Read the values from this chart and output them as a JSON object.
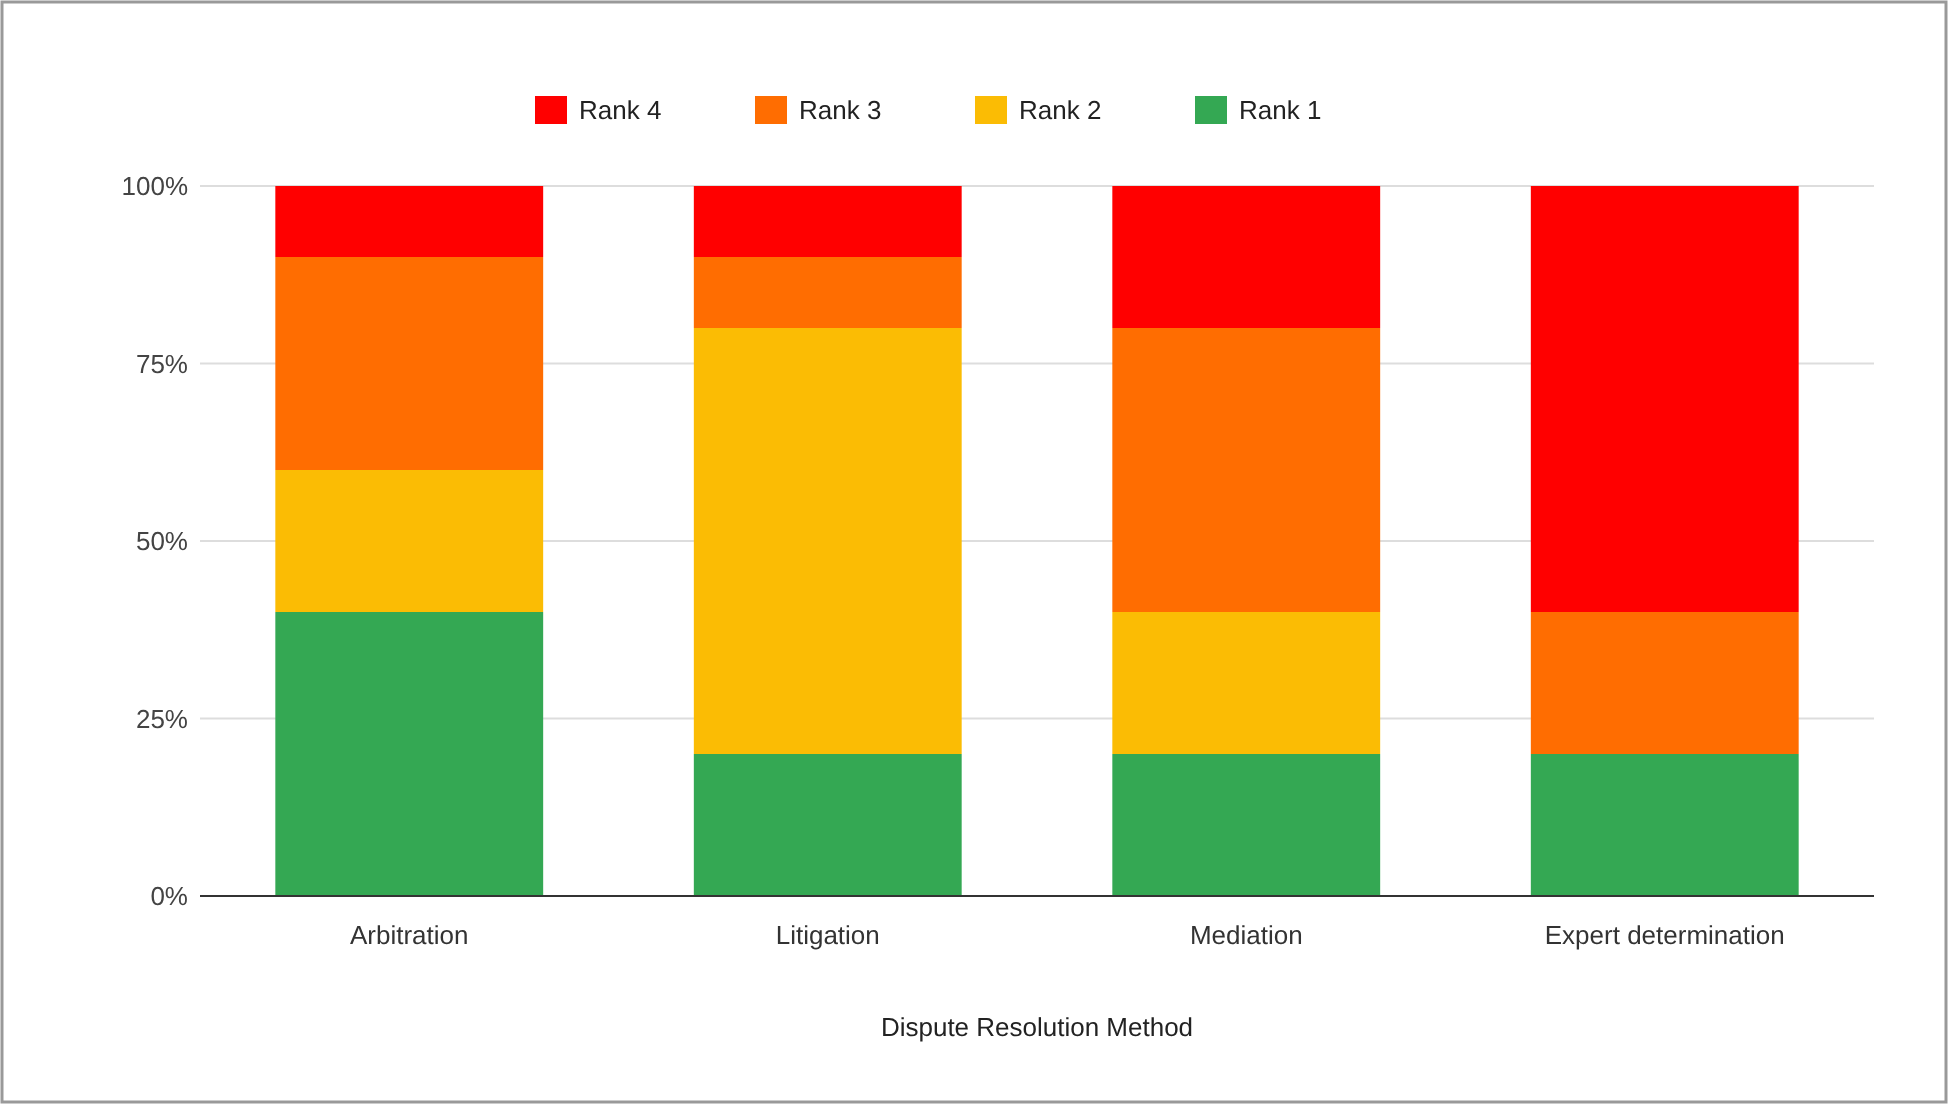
{
  "chart_data": {
    "type": "bar",
    "stacked": true,
    "xlabel": "Dispute Resolution Method",
    "categories": [
      "Arbitration",
      "Litigation",
      "Mediation",
      "Expert determination"
    ],
    "series": [
      {
        "name": "Rank 1",
        "color": "#34a853",
        "values": [
          40,
          20,
          20,
          20
        ]
      },
      {
        "name": "Rank 2",
        "color": "#fbbc04",
        "values": [
          20,
          60,
          20,
          0
        ]
      },
      {
        "name": "Rank 3",
        "color": "#ff6d01",
        "values": [
          30,
          10,
          40,
          20
        ]
      },
      {
        "name": "Rank 4",
        "color": "#ff0000",
        "values": [
          10,
          10,
          20,
          60
        ]
      }
    ],
    "ylim": [
      0,
      100
    ],
    "yticks": [
      {
        "value": 0,
        "label": "0%"
      },
      {
        "value": 25,
        "label": "25%"
      },
      {
        "value": 50,
        "label": "50%"
      },
      {
        "value": 75,
        "label": "75%"
      },
      {
        "value": 100,
        "label": "100%"
      }
    ],
    "grid": "y",
    "legend": "top"
  }
}
